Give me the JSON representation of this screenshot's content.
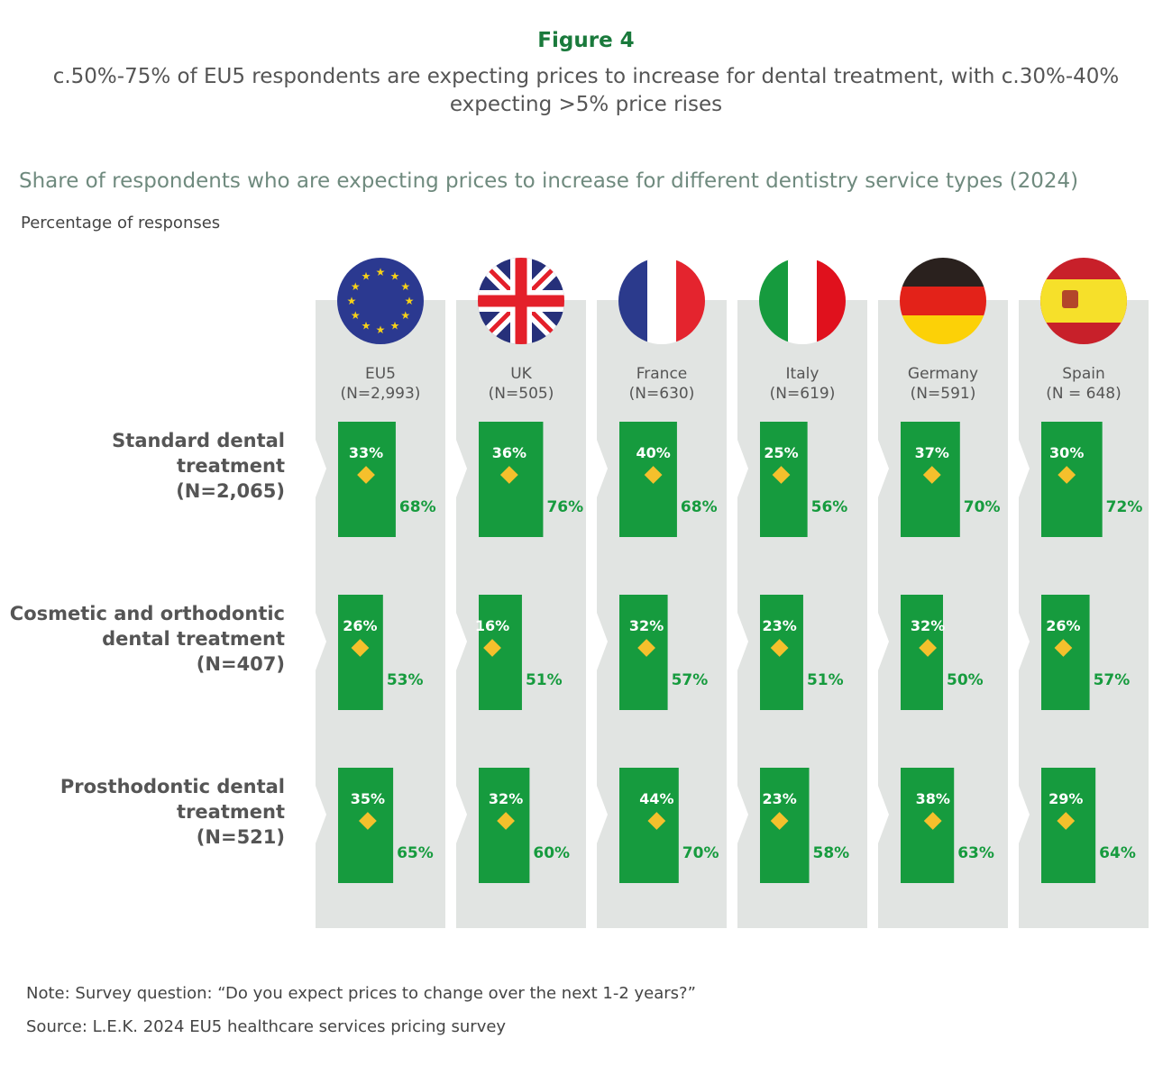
{
  "figure_label": "Figure 4",
  "subtitle": "c.50%-75% of EU5 respondents are expecting prices to increase for dental treatment, with c.30%-40% expecting >5% price rises",
  "note": "Note: Survey question: “Do you expect prices to change over the next 1-2 years?”",
  "source": "Source: L.E.K. 2024 EU5 healthcare services pricing survey",
  "chart_data": {
    "type": "bar",
    "title": "Share of respondents who are expecting prices to increase for different dentistry service types (2024)",
    "ylabel": "Percentage of responses",
    "colors": {
      "bar": "#169b3e",
      "marker": "#f5c02c",
      "column_bg": "#e1e4e2",
      "total_label": "#169b3e"
    },
    "countries": [
      {
        "name": "EU5",
        "n": "(N=2,993)",
        "flag": "eu-flag"
      },
      {
        "name": "UK",
        "n": "(N=505)",
        "flag": "uk-flag"
      },
      {
        "name": "France",
        "n": "(N=630)",
        "flag": "france-flag"
      },
      {
        "name": "Italy",
        "n": "(N=619)",
        "flag": "italy-flag"
      },
      {
        "name": "Germany",
        "n": "(N=591)",
        "flag": "germany-flag"
      },
      {
        "name": "Spain",
        "n": "(N = 648)",
        "flag": "spain-flag"
      }
    ],
    "rows": [
      {
        "label": [
          "Standard dental",
          "treatment",
          "(N=2,065)"
        ],
        "total": [
          68,
          76,
          68,
          56,
          70,
          72
        ],
        "above5": [
          33,
          36,
          40,
          25,
          37,
          30
        ]
      },
      {
        "label": [
          "Cosmetic and orthodontic",
          "dental treatment",
          "(N=407)"
        ],
        "total": [
          53,
          51,
          57,
          51,
          50,
          57
        ],
        "above5": [
          26,
          16,
          32,
          23,
          32,
          26
        ]
      },
      {
        "label": [
          "Prosthodontic dental",
          "treatment",
          "(N=521)"
        ],
        "total": [
          65,
          60,
          70,
          58,
          63,
          64
        ],
        "above5": [
          35,
          32,
          44,
          23,
          38,
          29
        ]
      }
    ]
  }
}
